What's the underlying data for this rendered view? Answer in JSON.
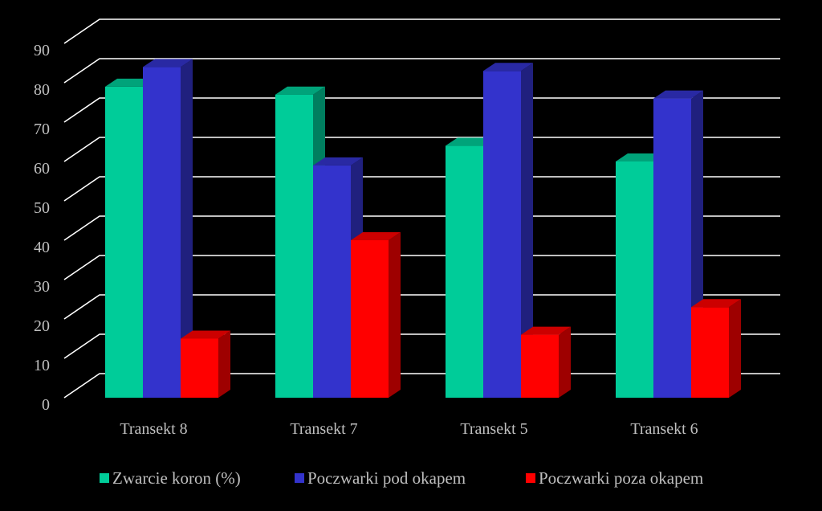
{
  "chart_data": {
    "type": "bar",
    "style": "3d-clustered-column",
    "categories": [
      "Transekt 8",
      "Transekt 7",
      "Transekt 5",
      "Transekt 6"
    ],
    "series": [
      {
        "name": "Zwarcie koron (%)",
        "color": "#00CC99",
        "values": [
          79,
          77,
          64,
          60
        ]
      },
      {
        "name": "Poczwarki pod okapem",
        "color": "#3333CC",
        "values": [
          84,
          59,
          83,
          76
        ]
      },
      {
        "name": "Poczwarki poza okapem",
        "color": "#FF0000",
        "values": [
          15,
          40,
          16,
          23
        ]
      }
    ],
    "y_ticks": [
      "0",
      "10",
      "20",
      "30",
      "40",
      "50",
      "60",
      "70",
      "80",
      "90"
    ],
    "ylim": [
      0,
      90
    ],
    "grid": true,
    "legend_position": "bottom",
    "background": "#000000",
    "text_color": "#BFBFBF",
    "grid_color": "#FFFFFF"
  }
}
